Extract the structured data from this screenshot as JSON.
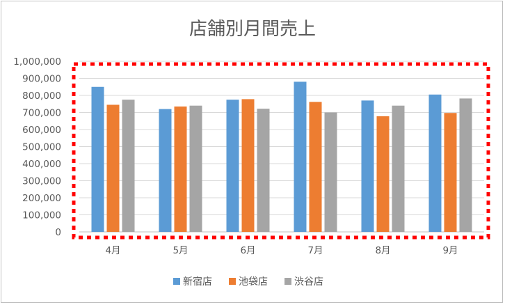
{
  "chart_data": {
    "type": "bar",
    "title": "店舗別月間売上",
    "categories": [
      "4月",
      "5月",
      "6月",
      "7月",
      "8月",
      "9月"
    ],
    "series": [
      {
        "name": "新宿店",
        "color": "#5b9bd5",
        "values": [
          850000,
          720000,
          775000,
          880000,
          770000,
          805000
        ]
      },
      {
        "name": "池袋店",
        "color": "#ed7d31",
        "values": [
          745000,
          735000,
          778000,
          762000,
          678000,
          697000
        ]
      },
      {
        "name": "渋谷店",
        "color": "#a5a5a5",
        "values": [
          775000,
          740000,
          722000,
          700000,
          740000,
          782000
        ]
      }
    ],
    "ylim": [
      0,
      1000000
    ],
    "ytick_labels": [
      "0",
      "100,000",
      "200,000",
      "300,000",
      "400,000",
      "500,000",
      "600,000",
      "700,000",
      "800,000",
      "900,000",
      "1,000,000"
    ],
    "grid": true,
    "legend_position": "bottom",
    "highlight_border_color": "#ff0000"
  }
}
